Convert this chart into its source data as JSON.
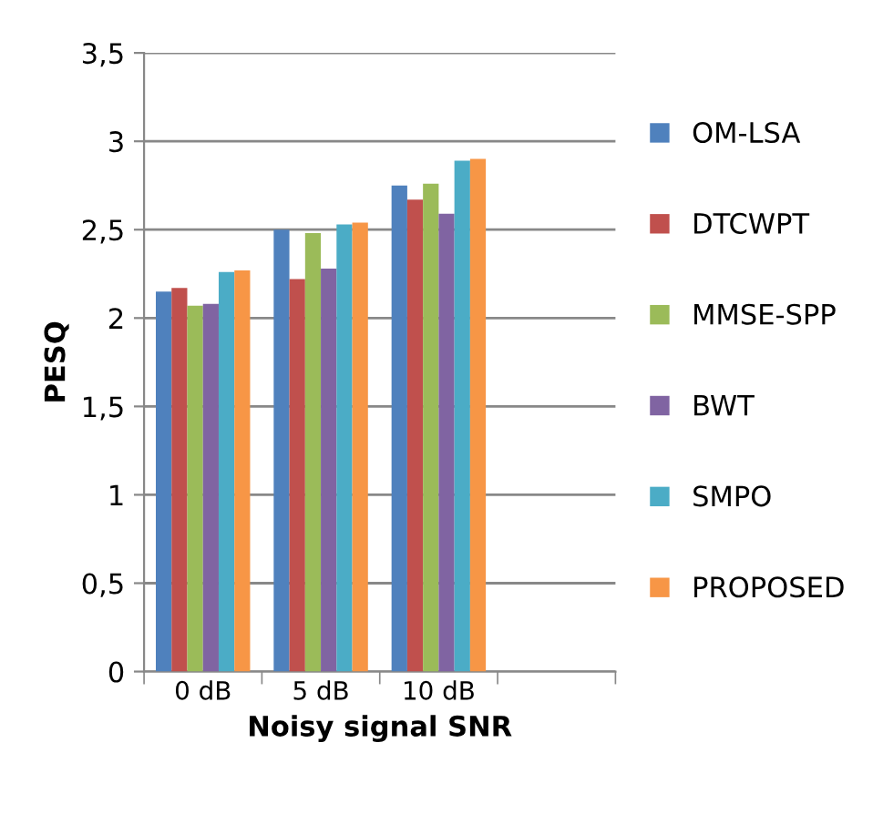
{
  "chart_data": {
    "type": "bar",
    "xlabel": "Noisy signal SNR",
    "ylabel": "PESQ",
    "categories": [
      "0 dB",
      "5 dB",
      "10 dB",
      null
    ],
    "series": [
      {
        "name": "OM-LSA",
        "color": "#4f81bd",
        "values": [
          2.15,
          2.5,
          2.75,
          null
        ]
      },
      {
        "name": "DTCWPT",
        "color": "#c0504d",
        "values": [
          2.17,
          2.22,
          2.67,
          null
        ]
      },
      {
        "name": "MMSE-SPP",
        "color": "#9bbb59",
        "values": [
          2.07,
          2.48,
          2.76,
          null
        ]
      },
      {
        "name": "BWT",
        "color": "#8064a2",
        "values": [
          2.08,
          2.28,
          2.59,
          null
        ]
      },
      {
        "name": "SMPO",
        "color": "#4bacc6",
        "values": [
          2.26,
          2.53,
          2.89,
          null
        ]
      },
      {
        "name": "PROPOSED",
        "color": "#f79646",
        "values": [
          2.27,
          2.54,
          2.9,
          null
        ]
      }
    ],
    "ylim": [
      0,
      3.5
    ],
    "yticks": [
      0,
      {
        "value": 0.5,
        "label": "0,5"
      },
      1,
      {
        "value": 1.5,
        "label": "1,5"
      },
      2,
      {
        "value": 2.5,
        "label": "2,5"
      },
      3,
      {
        "value": 3.5,
        "label": "3,5"
      }
    ],
    "grid": "y",
    "legend": "right"
  }
}
